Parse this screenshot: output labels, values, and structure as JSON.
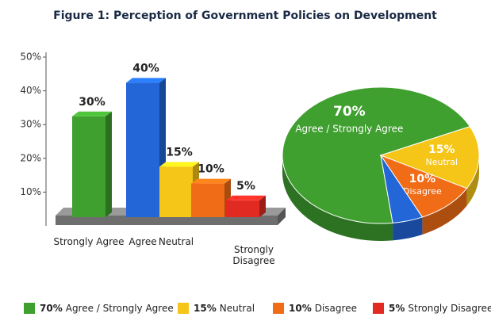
{
  "title": "Figure 1: Perception of Government Policies on Development",
  "chart_data": [
    {
      "type": "bar",
      "categories": [
        "Strongly Agree",
        "Agree",
        "Neutral",
        null,
        "Strongly Disagree"
      ],
      "values": [
        30,
        40,
        15,
        10,
        5
      ],
      "value_labels": [
        "30%",
        "40%",
        "15%",
        "10%",
        "5%"
      ],
      "colors": [
        "#3f9f2f",
        "#2266d8",
        "#f5c518",
        "#f06c17",
        "#e02a22"
      ],
      "ylim": [
        0,
        50
      ],
      "yticks": [
        {
          "value": 10,
          "label": "10%"
        },
        {
          "value": 20,
          "label": "20%"
        },
        {
          "value": 30,
          "label": "30%"
        },
        {
          "value": 40,
          "label": "40%"
        },
        {
          "value": 50,
          "label": "50%"
        }
      ]
    },
    {
      "type": "pie",
      "categories": [
        "Agree / Strongly Agree",
        "Neutral",
        "Disagree",
        "Strongly Disagree"
      ],
      "values": [
        70,
        15,
        10,
        5
      ],
      "value_labels": [
        "70%",
        "15%",
        "10%",
        "5%"
      ],
      "slice_labels": [
        "Agree / Strongly Agree",
        "Neutral",
        "Disagree",
        null
      ],
      "colors": [
        "#3f9f2f",
        "#f5c518",
        "#f06c17",
        "#2266d8"
      ],
      "legend_colors": [
        "#3f9f2f",
        "#f5c518",
        "#f06c17",
        "#e02a22"
      ]
    }
  ]
}
